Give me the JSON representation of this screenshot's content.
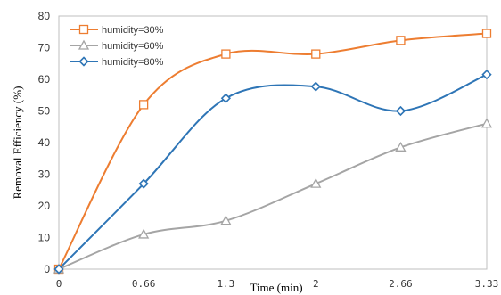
{
  "chart_data": {
    "type": "line",
    "smooth": true,
    "x": [
      0,
      0.66,
      1.3,
      2,
      2.66,
      3.33
    ],
    "x_tick_labels": [
      "0",
      "0.66",
      "1.3",
      "2",
      "2.66",
      "3.33"
    ],
    "xlabel": "Time (min)",
    "ylabel": "Removal Efficiency (%)",
    "ylim": [
      0,
      80
    ],
    "y_ticks": [
      0,
      10,
      20,
      30,
      40,
      50,
      60,
      70,
      80
    ],
    "grid": false,
    "legend_position": "top-left",
    "series": [
      {
        "name": "humidity=30%",
        "color": "#ED7D31",
        "marker": "square",
        "values": [
          0,
          52,
          68,
          68,
          72.3,
          74.5
        ]
      },
      {
        "name": "humidity=60%",
        "color": "#A5A5A5",
        "marker": "triangle",
        "values": [
          0,
          11,
          15.3,
          27,
          38.5,
          46
        ]
      },
      {
        "name": "humidity=80%",
        "color": "#2E75B6",
        "marker": "diamond",
        "values": [
          0,
          27,
          54,
          57.7,
          50,
          61.5
        ]
      }
    ]
  }
}
